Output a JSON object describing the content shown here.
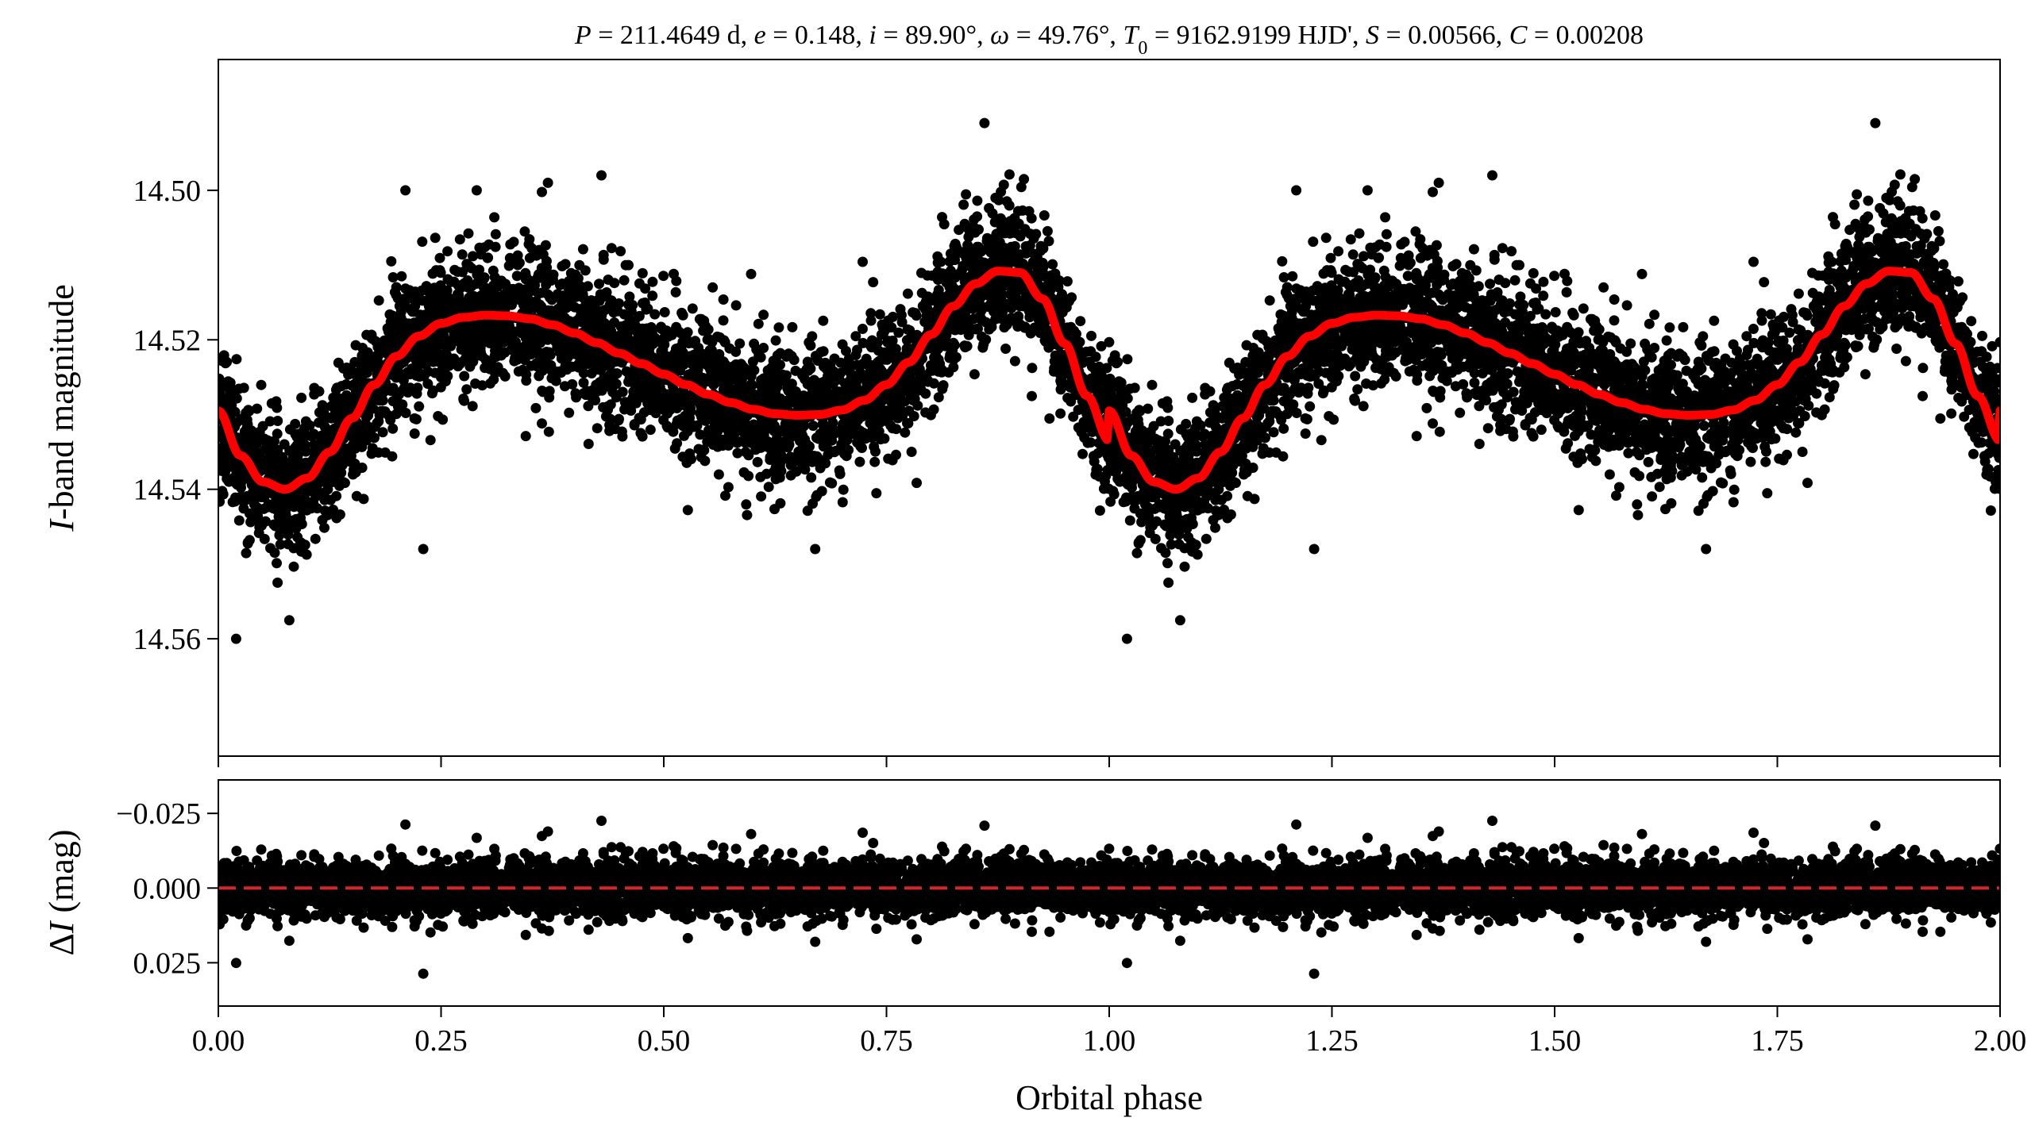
{
  "chart_data": [
    {
      "panel": "top",
      "type": "scatter",
      "title": "P = 211.4649 d, e = 0.148, i = 89.90°, ω = 49.76°, T0 = 9162.9199 HJD', S = 0.00566, C = 0.00208",
      "title_parts": [
        {
          "text": "P",
          "italic": true
        },
        {
          "text": " = 211.4649 d, ",
          "italic": false
        },
        {
          "text": "e",
          "italic": true
        },
        {
          "text": " = 0.148, ",
          "italic": false
        },
        {
          "text": "i",
          "italic": true
        },
        {
          "text": " = 89.90°, ",
          "italic": false
        },
        {
          "text": "ω",
          "italic": true
        },
        {
          "text": " = 49.76°, ",
          "italic": false
        },
        {
          "text": "T",
          "italic": true
        },
        {
          "text": "0",
          "italic": false,
          "sub": true
        },
        {
          "text": " = 9162.9199 HJD', ",
          "italic": false
        },
        {
          "text": "S",
          "italic": true
        },
        {
          "text": " = 0.00566, ",
          "italic": false
        },
        {
          "text": "C",
          "italic": true
        },
        {
          "text": " = 0.00208",
          "italic": false
        }
      ],
      "ylabel": "I-band magnitude",
      "ylabel_parts": [
        {
          "text": "I",
          "italic": true
        },
        {
          "text": "-band magnitude",
          "italic": false
        }
      ],
      "xlim": [
        0.0,
        2.0
      ],
      "ylim": [
        14.5757,
        14.4825
      ],
      "y_inverted": true,
      "yticks": [
        14.5,
        14.52,
        14.54,
        14.56
      ],
      "ytick_labels": [
        "14.50",
        "14.52",
        "14.54",
        "14.56"
      ],
      "xticks": [
        0.0,
        0.25,
        0.5,
        0.75,
        1.0,
        1.25,
        1.5,
        1.75,
        2.0
      ],
      "grid": false,
      "series": [
        {
          "kind": "observations",
          "color": "#000000",
          "point_count_per_cycle_approx": 4000,
          "scatter_sigma_mag": 0.0045,
          "outliers": [
            {
              "x": 0.02,
              "y": 14.56
            },
            {
              "x": 0.23,
              "y": 14.548
            },
            {
              "x": 0.43,
              "y": 14.498
            },
            {
              "x": 0.86,
              "y": 14.491
            },
            {
              "x": 0.67,
              "y": 14.548
            },
            {
              "x": 0.21,
              "y": 14.5
            },
            {
              "x": 0.29,
              "y": 14.5
            },
            {
              "x": 0.37,
              "y": 14.499
            }
          ]
        },
        {
          "kind": "model",
          "color": "#ff0000",
          "x": [
            0.0,
            0.025,
            0.05,
            0.075,
            0.1,
            0.125,
            0.15,
            0.175,
            0.2,
            0.225,
            0.25,
            0.275,
            0.3,
            0.325,
            0.35,
            0.375,
            0.4,
            0.425,
            0.45,
            0.475,
            0.5,
            0.525,
            0.55,
            0.575,
            0.6,
            0.625,
            0.65,
            0.675,
            0.7,
            0.725,
            0.75,
            0.775,
            0.8,
            0.825,
            0.85,
            0.875,
            0.9,
            0.925,
            0.95,
            0.975,
            1.0
          ],
          "y": [
            14.5295,
            14.5355,
            14.539,
            14.54,
            14.5385,
            14.535,
            14.5305,
            14.526,
            14.5222,
            14.5195,
            14.5178,
            14.517,
            14.5167,
            14.5168,
            14.5172,
            14.518,
            14.5191,
            14.5204,
            14.5218,
            14.5232,
            14.5246,
            14.526,
            14.5273,
            14.5284,
            14.5293,
            14.5299,
            14.5301,
            14.53,
            14.5294,
            14.5281,
            14.526,
            14.523,
            14.5193,
            14.5155,
            14.5125,
            14.5108,
            14.511,
            14.5145,
            14.5205,
            14.5275,
            14.5335
          ],
          "period_in_phase": 1.0
        }
      ]
    },
    {
      "panel": "bottom",
      "type": "scatter",
      "xlabel": "Orbital phase",
      "ylabel": "ΔI (mag)",
      "ylabel_parts": [
        {
          "text": "Δ",
          "italic": false
        },
        {
          "text": "I",
          "italic": true
        },
        {
          "text": " (mag)",
          "italic": false
        }
      ],
      "xlim": [
        0.0,
        2.0
      ],
      "ylim": [
        0.0395,
        -0.0362
      ],
      "y_inverted": true,
      "yticks": [
        -0.025,
        0.0,
        0.025
      ],
      "ytick_labels": [
        "−0.025",
        "0.000",
        "0.025"
      ],
      "xticks": [
        0.0,
        0.25,
        0.5,
        0.75,
        1.0,
        1.25,
        1.5,
        1.75,
        2.0
      ],
      "xtick_labels": [
        "0.00",
        "0.25",
        "0.50",
        "0.75",
        "1.00",
        "1.25",
        "1.50",
        "1.75",
        "2.00"
      ],
      "grid": false,
      "series": [
        {
          "kind": "residuals",
          "color": "#000000",
          "scatter_sigma_mag": 0.0045
        },
        {
          "kind": "zero_line",
          "color": "#d62728",
          "style": "dashed",
          "y": 0.0
        }
      ]
    }
  ]
}
